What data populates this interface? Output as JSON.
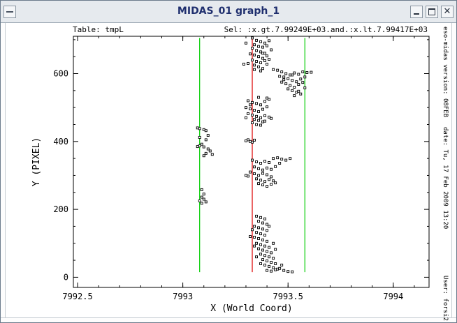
{
  "window": {
    "title": "MIDAS_01 graph_1",
    "buttons": {
      "minimize": "minimize",
      "maximize": "maximize",
      "close": "close"
    }
  },
  "header": {
    "table_label": "Table: tmpL",
    "selection_label": "Sel: :x.gt.7.99249E+03.and.:x.lt.7.99417E+03"
  },
  "sidebar_info": {
    "version": "eso-midas version: 08FEB",
    "date": "date: Tu, 17 Feb 2009 13:20",
    "user": "User: forsi2"
  },
  "chart_data": {
    "type": "scatter",
    "title": "",
    "xlabel": "X (World Coord)",
    "ylabel": "Y (PIXEL)",
    "xlim": [
      7992.48,
      7994.17
    ],
    "ylim": [
      -30,
      710
    ],
    "x_ticks": [
      7992.5,
      7993,
      7993.5,
      7994
    ],
    "x_tick_labels": [
      "7992.5",
      "7993",
      "7993.5",
      "7994"
    ],
    "y_ticks": [
      0,
      200,
      400,
      600
    ],
    "y_tick_labels": [
      "0",
      "200",
      "400",
      "600"
    ],
    "grid": false,
    "vertical_lines": [
      {
        "x": 7993.08,
        "y_range": [
          15,
          705
        ],
        "color": "#00cc00"
      },
      {
        "x": 7993.33,
        "y_range": [
          15,
          705
        ],
        "color": "#dd0000"
      },
      {
        "x": 7993.58,
        "y_range": [
          15,
          705
        ],
        "color": "#00cc00"
      }
    ],
    "series": [
      {
        "marker": "square",
        "points": [
          [
            7993.07,
            440
          ],
          [
            7993.08,
            438
          ],
          [
            7993.1,
            435
          ],
          [
            7993.11,
            432
          ],
          [
            7993.08,
            412
          ],
          [
            7993.12,
            418
          ],
          [
            7993.11,
            405
          ],
          [
            7993.09,
            392
          ],
          [
            7993.08,
            387
          ],
          [
            7993.1,
            384
          ],
          [
            7993.07,
            385
          ],
          [
            7993.12,
            378
          ],
          [
            7993.13,
            372
          ],
          [
            7993.11,
            365
          ],
          [
            7993.14,
            362
          ],
          [
            7993.1,
            358
          ],
          [
            7993.09,
            258
          ],
          [
            7993.1,
            245
          ],
          [
            7993.09,
            236
          ],
          [
            7993.1,
            230
          ],
          [
            7993.08,
            225
          ],
          [
            7993.09,
            218
          ],
          [
            7993.11,
            222
          ],
          [
            7993.33,
            705
          ],
          [
            7993.35,
            698
          ],
          [
            7993.37,
            694
          ],
          [
            7993.39,
            690
          ],
          [
            7993.41,
            697
          ],
          [
            7993.34,
            685
          ],
          [
            7993.36,
            680
          ],
          [
            7993.38,
            678
          ],
          [
            7993.4,
            682
          ],
          [
            7993.33,
            675
          ],
          [
            7993.35,
            668
          ],
          [
            7993.37,
            664
          ],
          [
            7993.39,
            660
          ],
          [
            7993.42,
            670
          ],
          [
            7993.34,
            655
          ],
          [
            7993.36,
            650
          ],
          [
            7993.38,
            645
          ],
          [
            7993.4,
            652
          ],
          [
            7993.33,
            640
          ],
          [
            7993.35,
            636
          ],
          [
            7993.37,
            632
          ],
          [
            7993.39,
            638
          ],
          [
            7993.41,
            642
          ],
          [
            7993.34,
            625
          ],
          [
            7993.36,
            620
          ],
          [
            7993.38,
            615
          ],
          [
            7993.4,
            628
          ],
          [
            7993.31,
            630
          ],
          [
            7993.29,
            628
          ],
          [
            7993.37,
            608
          ],
          [
            7993.34,
            612
          ],
          [
            7993.32,
            658
          ],
          [
            7993.3,
            690
          ],
          [
            7993.43,
            612
          ],
          [
            7993.38,
            660
          ],
          [
            7993.45,
            610
          ],
          [
            7993.47,
            605
          ],
          [
            7993.49,
            600
          ],
          [
            7993.51,
            596
          ],
          [
            7993.53,
            602
          ],
          [
            7993.55,
            598
          ],
          [
            7993.57,
            605
          ],
          [
            7993.59,
            603
          ],
          [
            7993.61,
            604
          ],
          [
            7993.48,
            590
          ],
          [
            7993.5,
            585
          ],
          [
            7993.52,
            580
          ],
          [
            7993.54,
            576
          ],
          [
            7993.56,
            584
          ],
          [
            7993.58,
            590
          ],
          [
            7993.47,
            575
          ],
          [
            7993.49,
            570
          ],
          [
            7993.51,
            565
          ],
          [
            7993.53,
            560
          ],
          [
            7993.55,
            568
          ],
          [
            7993.57,
            574
          ],
          [
            7993.5,
            555
          ],
          [
            7993.52,
            550
          ],
          [
            7993.54,
            545
          ],
          [
            7993.56,
            540
          ],
          [
            7993.53,
            535
          ],
          [
            7993.55,
            548
          ],
          [
            7993.48,
            582
          ],
          [
            7993.46,
            592
          ],
          [
            7993.52,
            596
          ],
          [
            7993.58,
            558
          ],
          [
            7993.31,
            520
          ],
          [
            7993.33,
            515
          ],
          [
            7993.35,
            512
          ],
          [
            7993.37,
            508
          ],
          [
            7993.39,
            518
          ],
          [
            7993.41,
            524
          ],
          [
            7993.3,
            500
          ],
          [
            7993.32,
            496
          ],
          [
            7993.34,
            492
          ],
          [
            7993.36,
            488
          ],
          [
            7993.38,
            495
          ],
          [
            7993.4,
            502
          ],
          [
            7993.31,
            482
          ],
          [
            7993.33,
            478
          ],
          [
            7993.35,
            474
          ],
          [
            7993.37,
            470
          ],
          [
            7993.39,
            476
          ],
          [
            7993.41,
            472
          ],
          [
            7993.42,
            468
          ],
          [
            7993.34,
            465
          ],
          [
            7993.36,
            462
          ],
          [
            7993.38,
            458
          ],
          [
            7993.33,
            455
          ],
          [
            7993.35,
            450
          ],
          [
            7993.37,
            448
          ],
          [
            7993.39,
            460
          ],
          [
            7993.32,
            508
          ],
          [
            7993.36,
            530
          ],
          [
            7993.4,
            528
          ],
          [
            7993.3,
            470
          ],
          [
            7993.31,
            405
          ],
          [
            7993.32,
            400
          ],
          [
            7993.33,
            398
          ],
          [
            7993.3,
            402
          ],
          [
            7993.34,
            404
          ],
          [
            7993.33,
            345
          ],
          [
            7993.35,
            340
          ],
          [
            7993.37,
            336
          ],
          [
            7993.39,
            342
          ],
          [
            7993.41,
            338
          ],
          [
            7993.43,
            350
          ],
          [
            7993.45,
            352
          ],
          [
            7993.47,
            348
          ],
          [
            7993.49,
            345
          ],
          [
            7993.51,
            350
          ],
          [
            7993.34,
            325
          ],
          [
            7993.36,
            320
          ],
          [
            7993.38,
            316
          ],
          [
            7993.4,
            322
          ],
          [
            7993.42,
            318
          ],
          [
            7993.44,
            326
          ],
          [
            7993.32,
            310
          ],
          [
            7993.34,
            305
          ],
          [
            7993.36,
            300
          ],
          [
            7993.38,
            306
          ],
          [
            7993.4,
            302
          ],
          [
            7993.42,
            296
          ],
          [
            7993.35,
            290
          ],
          [
            7993.37,
            286
          ],
          [
            7993.39,
            282
          ],
          [
            7993.41,
            288
          ],
          [
            7993.43,
            284
          ],
          [
            7993.36,
            276
          ],
          [
            7993.38,
            272
          ],
          [
            7993.4,
            268
          ],
          [
            7993.42,
            274
          ],
          [
            7993.44,
            278
          ],
          [
            7993.31,
            298
          ],
          [
            7993.46,
            336
          ],
          [
            7993.3,
            300
          ],
          [
            7993.35,
            180
          ],
          [
            7993.37,
            176
          ],
          [
            7993.39,
            172
          ],
          [
            7993.36,
            165
          ],
          [
            7993.38,
            160
          ],
          [
            7993.4,
            156
          ],
          [
            7993.34,
            150
          ],
          [
            7993.36,
            146
          ],
          [
            7993.38,
            142
          ],
          [
            7993.4,
            138
          ],
          [
            7993.35,
            132
          ],
          [
            7993.37,
            128
          ],
          [
            7993.39,
            124
          ],
          [
            7993.34,
            118
          ],
          [
            7993.36,
            114
          ],
          [
            7993.38,
            110
          ],
          [
            7993.4,
            106
          ],
          [
            7993.35,
            100
          ],
          [
            7993.37,
            96
          ],
          [
            7993.39,
            92
          ],
          [
            7993.41,
            88
          ],
          [
            7993.36,
            84
          ],
          [
            7993.38,
            80
          ],
          [
            7993.4,
            76
          ],
          [
            7993.42,
            72
          ],
          [
            7993.37,
            68
          ],
          [
            7993.39,
            64
          ],
          [
            7993.41,
            60
          ],
          [
            7993.43,
            56
          ],
          [
            7993.38,
            52
          ],
          [
            7993.4,
            48
          ],
          [
            7993.42,
            44
          ],
          [
            7993.44,
            40
          ],
          [
            7993.39,
            36
          ],
          [
            7993.41,
            32
          ],
          [
            7993.43,
            28
          ],
          [
            7993.45,
            24
          ],
          [
            7993.4,
            20
          ],
          [
            7993.42,
            18
          ],
          [
            7993.44,
            22
          ],
          [
            7993.46,
            26
          ],
          [
            7993.48,
            20
          ],
          [
            7993.5,
            17
          ],
          [
            7993.52,
            16
          ],
          [
            7993.33,
            140
          ],
          [
            7993.32,
            120
          ],
          [
            7993.43,
            100
          ],
          [
            7993.44,
            82
          ],
          [
            7993.35,
            60
          ],
          [
            7993.37,
            40
          ],
          [
            7993.47,
            36
          ],
          [
            7993.34,
            92
          ],
          [
            7993.41,
            150
          ]
        ]
      }
    ]
  }
}
